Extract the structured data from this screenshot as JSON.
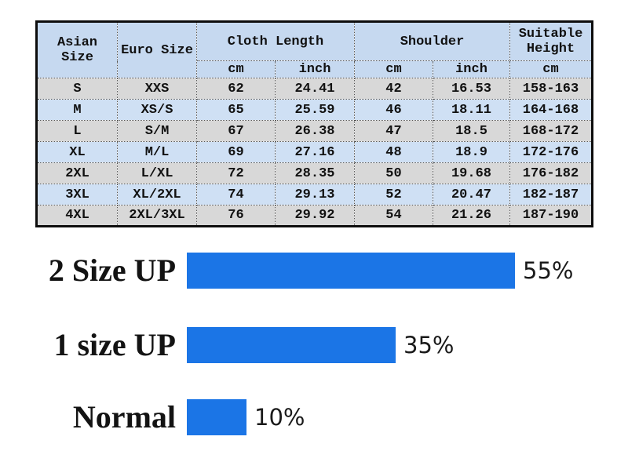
{
  "size_table": {
    "headers": {
      "asian_size": "Asian Size",
      "euro_size": "Euro Size",
      "cloth_length": "Cloth Length",
      "shoulder": "Shoulder",
      "suitable_height": "Suitable Height"
    },
    "units": [
      "cm",
      "inch",
      "cm",
      "inch",
      "cm"
    ],
    "rows": [
      [
        "S",
        "XXS",
        "62",
        "24.41",
        "42",
        "16.53",
        "158-163"
      ],
      [
        "M",
        "XS/S",
        "65",
        "25.59",
        "46",
        "18.11",
        "164-168"
      ],
      [
        "L",
        "S/M",
        "67",
        "26.38",
        "47",
        "18.5",
        "168-172"
      ],
      [
        "XL",
        "M/L",
        "69",
        "27.16",
        "48",
        "18.9",
        "172-176"
      ],
      [
        "2XL",
        "L/XL",
        "72",
        "28.35",
        "50",
        "19.68",
        "176-182"
      ],
      [
        "3XL",
        "XL/2XL",
        "74",
        "29.13",
        "52",
        "20.47",
        "182-187"
      ],
      [
        "4XL",
        "2XL/3XL",
        "76",
        "29.92",
        "54",
        "21.26",
        "187-190"
      ]
    ]
  },
  "chart_data": {
    "type": "bar",
    "orientation": "horizontal",
    "categories": [
      "2 Size UP",
      "1 size UP",
      "Normal"
    ],
    "values": [
      55,
      35,
      10
    ],
    "value_labels": [
      "55%",
      "35%",
      "10%"
    ],
    "xlim": [
      0,
      60
    ],
    "grid": false,
    "legend": false,
    "bar_color": "#1b75e6"
  },
  "colors": {
    "bar_blue": "#1b75e6",
    "header_blue": "#c6d9f0",
    "stripe_blue": "#cfe0f4",
    "stripe_gray": "#d8d8d8",
    "table_border": "#0d0d0d"
  }
}
